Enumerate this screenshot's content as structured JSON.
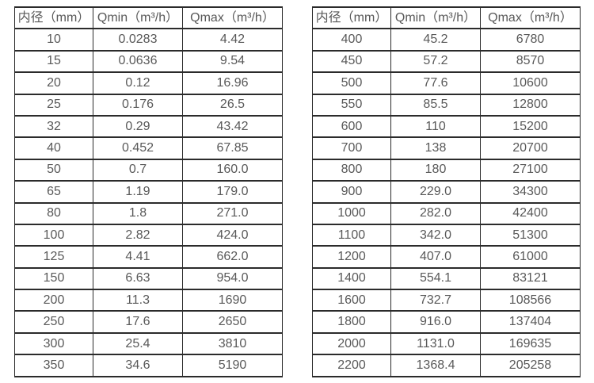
{
  "colors": {
    "border": "#2b2b2b",
    "text": "#595959",
    "background": "#ffffff"
  },
  "table_left": {
    "headers": [
      "内径（mm）",
      "Qmin（m³/h）",
      "Qmax（m³/h）"
    ],
    "rows": [
      [
        "10",
        "0.0283",
        "4.42"
      ],
      [
        "15",
        "0.0636",
        "9.54"
      ],
      [
        "20",
        "0.12",
        "16.96"
      ],
      [
        "25",
        "0.176",
        "26.5"
      ],
      [
        "32",
        "0.29",
        "43.42"
      ],
      [
        "40",
        "0.452",
        "67.85"
      ],
      [
        "50",
        "0.7",
        "160.0"
      ],
      [
        "65",
        "1.19",
        "179.0"
      ],
      [
        "80",
        "1.8",
        "271.0"
      ],
      [
        "100",
        "2.82",
        "424.0"
      ],
      [
        "125",
        "4.41",
        "662.0"
      ],
      [
        "150",
        "6.63",
        "954.0"
      ],
      [
        "200",
        "11.3",
        "1690"
      ],
      [
        "250",
        "17.6",
        "2650"
      ],
      [
        "300",
        "25.4",
        "3810"
      ],
      [
        "350",
        "34.6",
        "5190"
      ]
    ]
  },
  "table_right": {
    "headers": [
      "内径（mm）",
      "Qmin（m³/h）",
      "Qmax（m³/h）"
    ],
    "rows": [
      [
        "400",
        "45.2",
        "6780"
      ],
      [
        "450",
        "57.2",
        "8570"
      ],
      [
        "500",
        "77.6",
        "10600"
      ],
      [
        "550",
        "85.5",
        "12800"
      ],
      [
        "600",
        "110",
        "15200"
      ],
      [
        "700",
        "138",
        "20700"
      ],
      [
        "800",
        "180",
        "27100"
      ],
      [
        "900",
        "229.0",
        "34300"
      ],
      [
        "1000",
        "282.0",
        "42400"
      ],
      [
        "1100",
        "342.0",
        "51300"
      ],
      [
        "1200",
        "407.0",
        "61000"
      ],
      [
        "1400",
        "554.1",
        "83121"
      ],
      [
        "1600",
        "732.7",
        "108566"
      ],
      [
        "1800",
        "916.0",
        "137404"
      ],
      [
        "2000",
        "1131.0",
        "169635"
      ],
      [
        "2200",
        "1368.4",
        "205258"
      ]
    ]
  }
}
